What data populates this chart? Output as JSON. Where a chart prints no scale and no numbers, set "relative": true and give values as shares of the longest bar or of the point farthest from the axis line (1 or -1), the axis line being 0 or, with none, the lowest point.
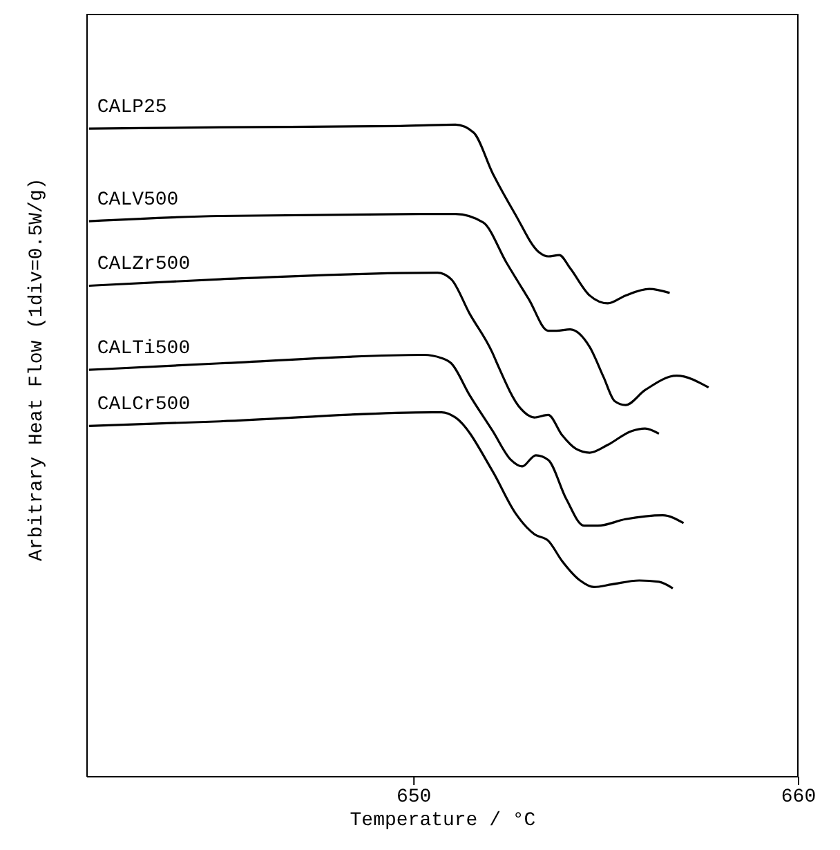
{
  "chart_data": {
    "type": "line",
    "relative": true,
    "xlabel": "Temperature / °C",
    "ylabel": "Arbitrary Heat Flow (1div=0.5W/g)",
    "xlim": [
      641.5,
      660
    ],
    "xticks": [
      650,
      660
    ],
    "series": [
      {
        "name": "CALP25",
        "color": "#000000",
        "x": [
          641.55,
          644.96,
          649.64,
          651.08,
          651.55,
          652.05,
          652.63,
          653.24,
          653.49,
          653.78,
          654.06,
          654.57,
          655.04,
          655.5,
          656.12,
          656.65
        ],
        "values": [
          0.994,
          0.996,
          0.998,
          1.0,
          0.988,
          0.925,
          0.863,
          0.805,
          0.798,
          0.8,
          0.78,
          0.738,
          0.726,
          0.738,
          0.748,
          0.742
        ]
      },
      {
        "name": "CALV500",
        "color": "#000000",
        "x": [
          641.55,
          644.96,
          650.72,
          651.08,
          651.8,
          652.41,
          652.99,
          653.49,
          653.71,
          654.06,
          654.57,
          654.93,
          655.22,
          655.5,
          656.01,
          656.83,
          657.66
        ],
        "values": [
          0.852,
          0.86,
          0.863,
          0.863,
          0.85,
          0.788,
          0.732,
          0.684,
          0.684,
          0.686,
          0.659,
          0.613,
          0.576,
          0.57,
          0.593,
          0.615,
          0.597
        ]
      },
      {
        "name": "CALZr500",
        "color": "#000000",
        "x": [
          641.55,
          644.96,
          650.61,
          650.97,
          651.44,
          652.05,
          652.16,
          652.77,
          653.13,
          653.49,
          653.85,
          654.21,
          654.57,
          655.04,
          655.65,
          656.01,
          656.37
        ],
        "values": [
          0.753,
          0.763,
          0.773,
          0.763,
          0.711,
          0.649,
          0.634,
          0.565,
          0.551,
          0.555,
          0.524,
          0.503,
          0.497,
          0.509,
          0.53,
          0.534,
          0.526
        ]
      },
      {
        "name": "CALTi500",
        "color": "#000000",
        "x": [
          641.55,
          644.96,
          650.25,
          650.72,
          650.97,
          651.44,
          652.05,
          652.52,
          652.81,
          653.17,
          653.49,
          653.96,
          654.42,
          654.78,
          655.5,
          656.47,
          657.01
        ],
        "values": [
          0.624,
          0.634,
          0.647,
          0.642,
          0.634,
          0.586,
          0.53,
          0.486,
          0.476,
          0.493,
          0.486,
          0.426,
          0.385,
          0.385,
          0.395,
          0.401,
          0.389
        ]
      },
      {
        "name": "CALCr500",
        "color": "#000000",
        "x": [
          641.55,
          644.96,
          650.47,
          650.72,
          651.08,
          652.05,
          652.63,
          653.13,
          653.49,
          653.85,
          654.32,
          654.68,
          655.14,
          655.86,
          656.37,
          656.73
        ],
        "values": [
          0.538,
          0.545,
          0.559,
          0.559,
          0.551,
          0.468,
          0.405,
          0.372,
          0.362,
          0.331,
          0.301,
          0.291,
          0.295,
          0.301,
          0.299,
          0.289
        ]
      }
    ]
  }
}
